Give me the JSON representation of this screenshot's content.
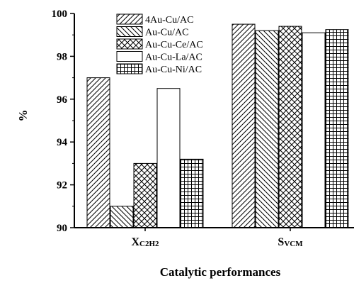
{
  "chart_data": {
    "type": "bar",
    "categories": [
      {
        "main": "X",
        "sub": "C2H2"
      },
      {
        "main": "S",
        "sub": "VCM"
      }
    ],
    "series": [
      {
        "name": "4Au-Cu/AC",
        "pattern": "diag-right",
        "values": [
          97.0,
          99.5
        ]
      },
      {
        "name": "Au-Cu/AC",
        "pattern": "diag-left",
        "values": [
          91.0,
          99.2
        ]
      },
      {
        "name": "Au-Cu-Ce/AC",
        "pattern": "crosshatch",
        "values": [
          93.0,
          99.4
        ]
      },
      {
        "name": "Au-Cu-La/AC",
        "pattern": "blank",
        "values": [
          96.5,
          99.1
        ]
      },
      {
        "name": "Au-Cu-Ni/AC",
        "pattern": "grid",
        "values": [
          93.2,
          99.25
        ]
      }
    ],
    "ylabel": "%",
    "xlabel": "Catalytic performances",
    "ylim": [
      90,
      100
    ],
    "yticks": [
      "90",
      "92",
      "94",
      "96",
      "98",
      "100"
    ],
    "grid": false,
    "legend_position": "top-left"
  }
}
